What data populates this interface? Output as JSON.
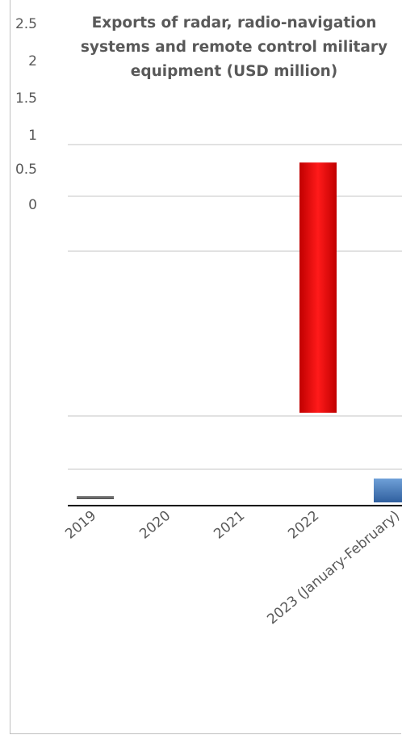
{
  "chart_data": {
    "type": "bar",
    "title": "Exports of radar, radio-navigation systems and remote control military equipment (USD million)",
    "title_lines": [
      "Exports of radar, radio-navigation",
      "systems and remote control military",
      "equipment (USD million)"
    ],
    "xlabel": "",
    "ylabel": "",
    "y_ticks": [
      "2.5",
      "2",
      "1.5",
      "1",
      "0.5",
      "0"
    ],
    "categories": [
      "2019",
      "2020",
      "2021",
      "2022",
      "2023 (January-February)"
    ],
    "values": [
      0.01,
      0,
      0,
      1.05,
      0.1
    ],
    "colors": [
      "#7f7f7f",
      "#7f7f7f",
      "#7f7f7f",
      "#ff0000",
      "#4f81bd"
    ],
    "grid": true,
    "legend": "none"
  }
}
